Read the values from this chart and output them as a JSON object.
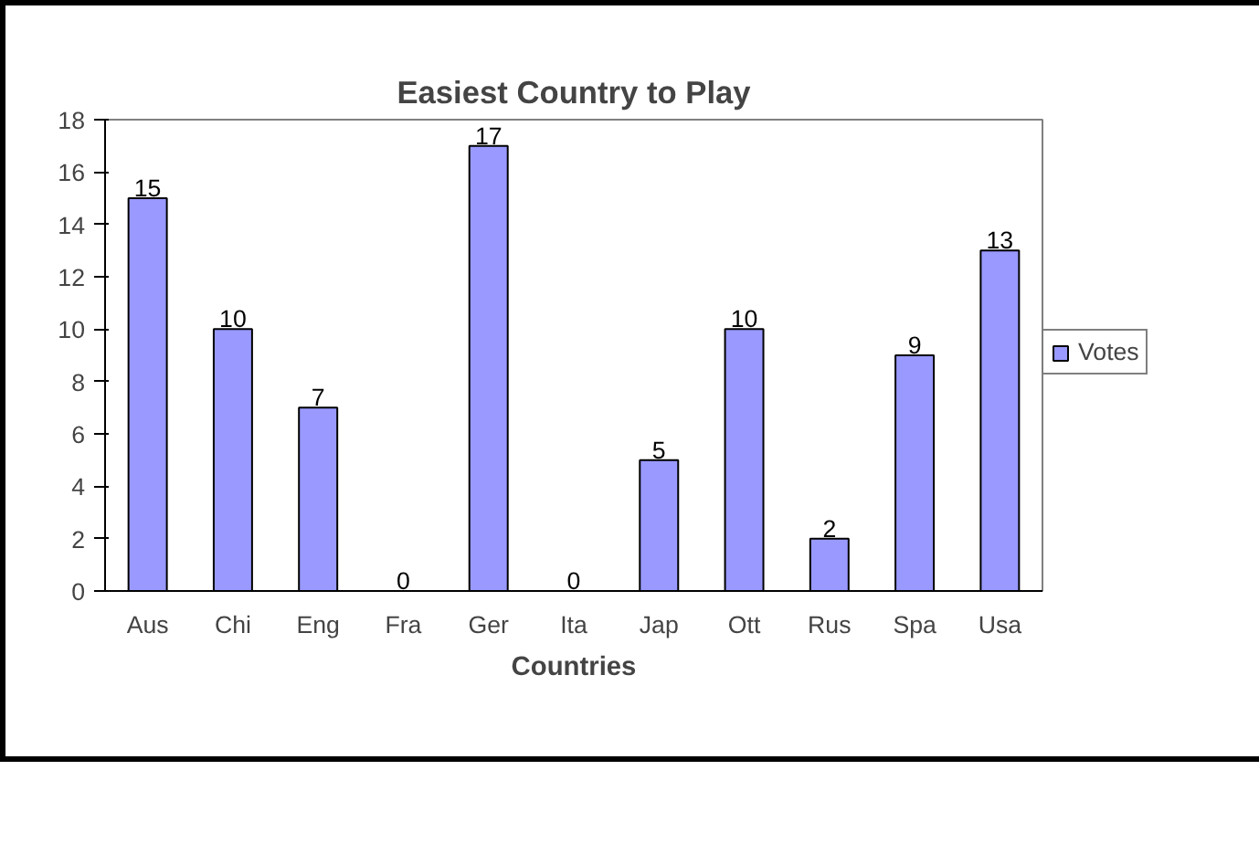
{
  "chart_data": {
    "type": "bar",
    "title": "Easiest Country to Play",
    "xlabel": "Countries",
    "categories": [
      "Aus",
      "Chi",
      "Eng",
      "Fra",
      "Ger",
      "Ita",
      "Jap",
      "Ott",
      "Rus",
      "Spa",
      "Usa"
    ],
    "series": [
      {
        "name": "Votes",
        "color": "#9999ff",
        "values": [
          15,
          10,
          7,
          0,
          17,
          0,
          5,
          10,
          2,
          9,
          13
        ]
      }
    ],
    "ylim": [
      0,
      18
    ],
    "yticks": [
      0,
      2,
      4,
      6,
      8,
      10,
      12,
      14,
      16,
      18
    ],
    "data_labels": true,
    "grid": false,
    "legend": "right"
  }
}
